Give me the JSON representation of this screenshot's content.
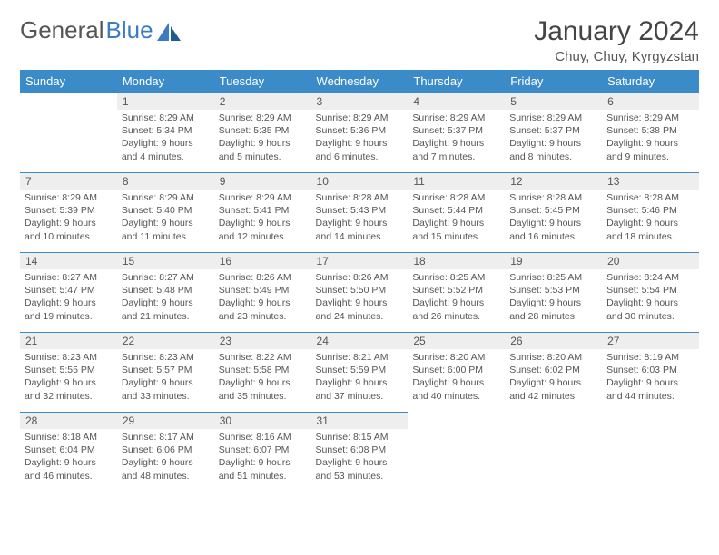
{
  "brand": {
    "part1": "General",
    "part2": "Blue"
  },
  "title": "January 2024",
  "location": "Chuy, Chuy, Kyrgyzstan",
  "headers": [
    "Sunday",
    "Monday",
    "Tuesday",
    "Wednesday",
    "Thursday",
    "Friday",
    "Saturday"
  ],
  "colors": {
    "header_bg": "#3b8bc8",
    "daynum_bg": "#eeeeee",
    "border": "#3b8bc8",
    "brand_blue": "#3b7bbf"
  },
  "weeks": [
    [
      {
        "num": "",
        "sunrise": "",
        "sunset": "",
        "daylight": "",
        "empty": true
      },
      {
        "num": "1",
        "sunrise": "Sunrise: 8:29 AM",
        "sunset": "Sunset: 5:34 PM",
        "daylight": "Daylight: 9 hours and 4 minutes."
      },
      {
        "num": "2",
        "sunrise": "Sunrise: 8:29 AM",
        "sunset": "Sunset: 5:35 PM",
        "daylight": "Daylight: 9 hours and 5 minutes."
      },
      {
        "num": "3",
        "sunrise": "Sunrise: 8:29 AM",
        "sunset": "Sunset: 5:36 PM",
        "daylight": "Daylight: 9 hours and 6 minutes."
      },
      {
        "num": "4",
        "sunrise": "Sunrise: 8:29 AM",
        "sunset": "Sunset: 5:37 PM",
        "daylight": "Daylight: 9 hours and 7 minutes."
      },
      {
        "num": "5",
        "sunrise": "Sunrise: 8:29 AM",
        "sunset": "Sunset: 5:37 PM",
        "daylight": "Daylight: 9 hours and 8 minutes."
      },
      {
        "num": "6",
        "sunrise": "Sunrise: 8:29 AM",
        "sunset": "Sunset: 5:38 PM",
        "daylight": "Daylight: 9 hours and 9 minutes."
      }
    ],
    [
      {
        "num": "7",
        "sunrise": "Sunrise: 8:29 AM",
        "sunset": "Sunset: 5:39 PM",
        "daylight": "Daylight: 9 hours and 10 minutes."
      },
      {
        "num": "8",
        "sunrise": "Sunrise: 8:29 AM",
        "sunset": "Sunset: 5:40 PM",
        "daylight": "Daylight: 9 hours and 11 minutes."
      },
      {
        "num": "9",
        "sunrise": "Sunrise: 8:29 AM",
        "sunset": "Sunset: 5:41 PM",
        "daylight": "Daylight: 9 hours and 12 minutes."
      },
      {
        "num": "10",
        "sunrise": "Sunrise: 8:28 AM",
        "sunset": "Sunset: 5:43 PM",
        "daylight": "Daylight: 9 hours and 14 minutes."
      },
      {
        "num": "11",
        "sunrise": "Sunrise: 8:28 AM",
        "sunset": "Sunset: 5:44 PM",
        "daylight": "Daylight: 9 hours and 15 minutes."
      },
      {
        "num": "12",
        "sunrise": "Sunrise: 8:28 AM",
        "sunset": "Sunset: 5:45 PM",
        "daylight": "Daylight: 9 hours and 16 minutes."
      },
      {
        "num": "13",
        "sunrise": "Sunrise: 8:28 AM",
        "sunset": "Sunset: 5:46 PM",
        "daylight": "Daylight: 9 hours and 18 minutes."
      }
    ],
    [
      {
        "num": "14",
        "sunrise": "Sunrise: 8:27 AM",
        "sunset": "Sunset: 5:47 PM",
        "daylight": "Daylight: 9 hours and 19 minutes."
      },
      {
        "num": "15",
        "sunrise": "Sunrise: 8:27 AM",
        "sunset": "Sunset: 5:48 PM",
        "daylight": "Daylight: 9 hours and 21 minutes."
      },
      {
        "num": "16",
        "sunrise": "Sunrise: 8:26 AM",
        "sunset": "Sunset: 5:49 PM",
        "daylight": "Daylight: 9 hours and 23 minutes."
      },
      {
        "num": "17",
        "sunrise": "Sunrise: 8:26 AM",
        "sunset": "Sunset: 5:50 PM",
        "daylight": "Daylight: 9 hours and 24 minutes."
      },
      {
        "num": "18",
        "sunrise": "Sunrise: 8:25 AM",
        "sunset": "Sunset: 5:52 PM",
        "daylight": "Daylight: 9 hours and 26 minutes."
      },
      {
        "num": "19",
        "sunrise": "Sunrise: 8:25 AM",
        "sunset": "Sunset: 5:53 PM",
        "daylight": "Daylight: 9 hours and 28 minutes."
      },
      {
        "num": "20",
        "sunrise": "Sunrise: 8:24 AM",
        "sunset": "Sunset: 5:54 PM",
        "daylight": "Daylight: 9 hours and 30 minutes."
      }
    ],
    [
      {
        "num": "21",
        "sunrise": "Sunrise: 8:23 AM",
        "sunset": "Sunset: 5:55 PM",
        "daylight": "Daylight: 9 hours and 32 minutes."
      },
      {
        "num": "22",
        "sunrise": "Sunrise: 8:23 AM",
        "sunset": "Sunset: 5:57 PM",
        "daylight": "Daylight: 9 hours and 33 minutes."
      },
      {
        "num": "23",
        "sunrise": "Sunrise: 8:22 AM",
        "sunset": "Sunset: 5:58 PM",
        "daylight": "Daylight: 9 hours and 35 minutes."
      },
      {
        "num": "24",
        "sunrise": "Sunrise: 8:21 AM",
        "sunset": "Sunset: 5:59 PM",
        "daylight": "Daylight: 9 hours and 37 minutes."
      },
      {
        "num": "25",
        "sunrise": "Sunrise: 8:20 AM",
        "sunset": "Sunset: 6:00 PM",
        "daylight": "Daylight: 9 hours and 40 minutes."
      },
      {
        "num": "26",
        "sunrise": "Sunrise: 8:20 AM",
        "sunset": "Sunset: 6:02 PM",
        "daylight": "Daylight: 9 hours and 42 minutes."
      },
      {
        "num": "27",
        "sunrise": "Sunrise: 8:19 AM",
        "sunset": "Sunset: 6:03 PM",
        "daylight": "Daylight: 9 hours and 44 minutes."
      }
    ],
    [
      {
        "num": "28",
        "sunrise": "Sunrise: 8:18 AM",
        "sunset": "Sunset: 6:04 PM",
        "daylight": "Daylight: 9 hours and 46 minutes."
      },
      {
        "num": "29",
        "sunrise": "Sunrise: 8:17 AM",
        "sunset": "Sunset: 6:06 PM",
        "daylight": "Daylight: 9 hours and 48 minutes."
      },
      {
        "num": "30",
        "sunrise": "Sunrise: 8:16 AM",
        "sunset": "Sunset: 6:07 PM",
        "daylight": "Daylight: 9 hours and 51 minutes."
      },
      {
        "num": "31",
        "sunrise": "Sunrise: 8:15 AM",
        "sunset": "Sunset: 6:08 PM",
        "daylight": "Daylight: 9 hours and 53 minutes."
      },
      {
        "num": "",
        "sunrise": "",
        "sunset": "",
        "daylight": "",
        "empty": true
      },
      {
        "num": "",
        "sunrise": "",
        "sunset": "",
        "daylight": "",
        "empty": true
      },
      {
        "num": "",
        "sunrise": "",
        "sunset": "",
        "daylight": "",
        "empty": true
      }
    ]
  ]
}
